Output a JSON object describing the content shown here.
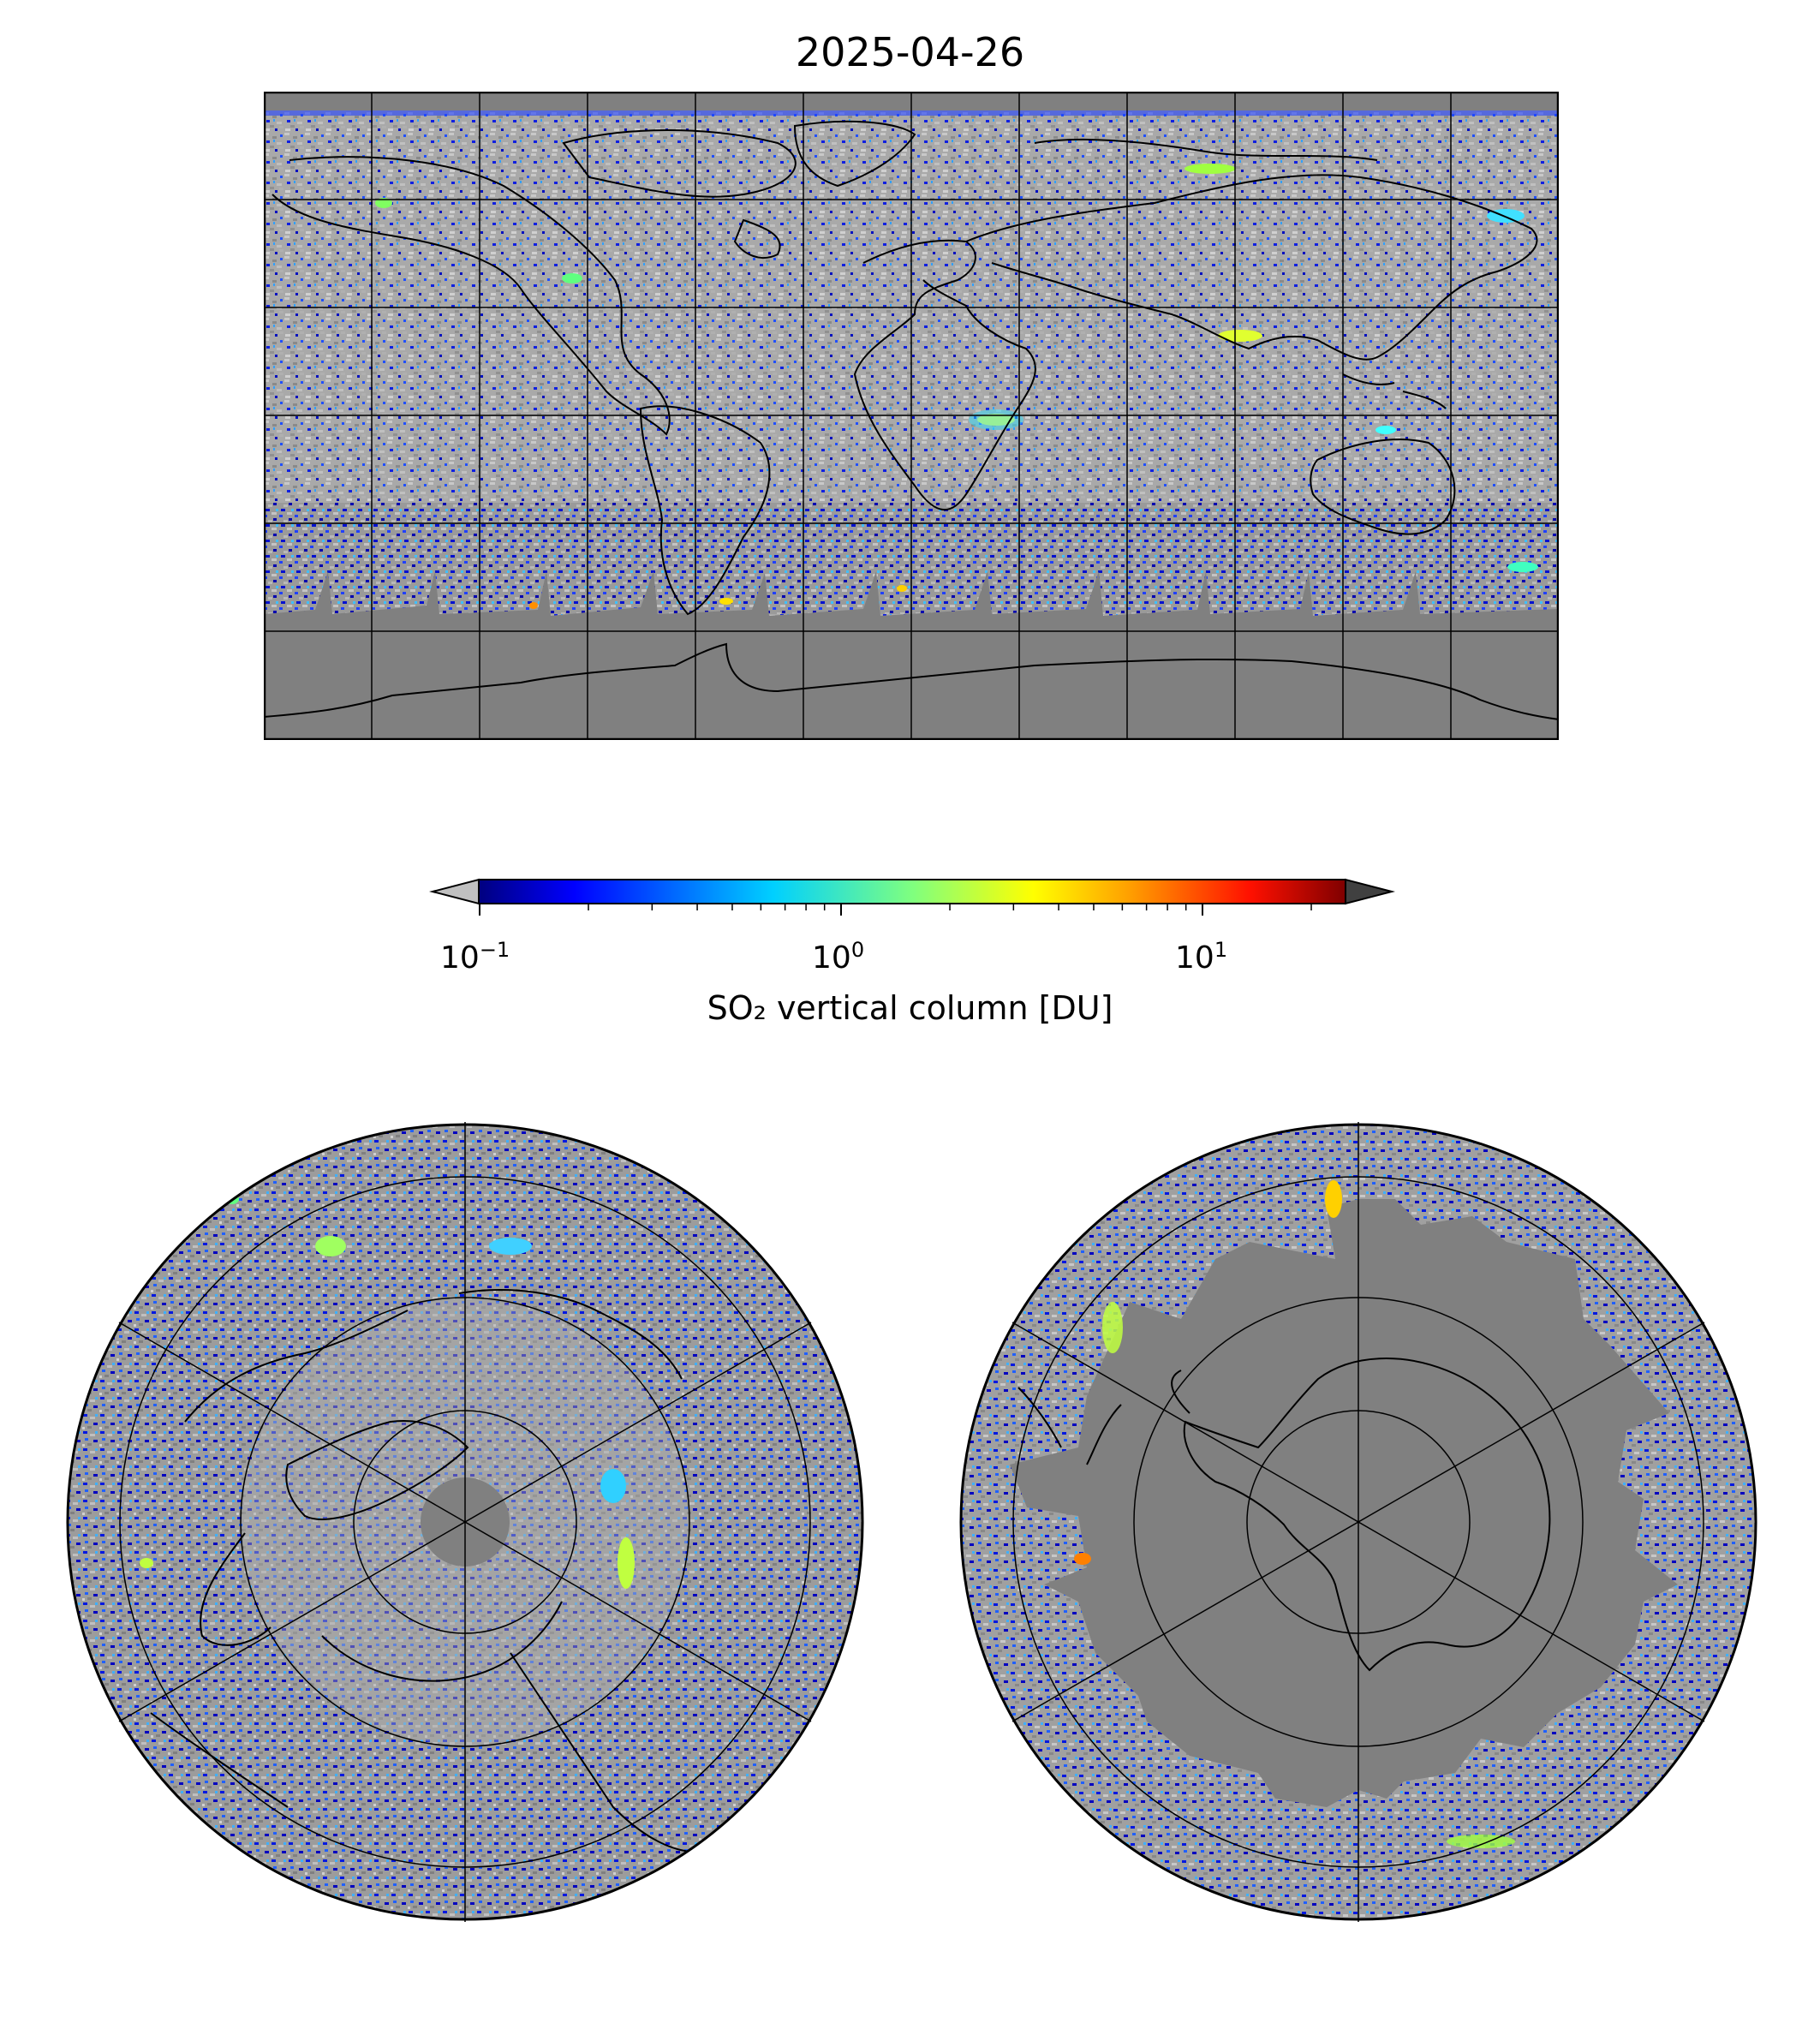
{
  "title": "2025-04-26",
  "colorbar": {
    "label": "SO₂ vertical column [DU]",
    "scale": "log",
    "range": [
      0.1,
      25
    ],
    "extend": "both",
    "under_color": "#c0c0c0",
    "over_color": "#404040",
    "colormap": "jet",
    "ticks": [
      {
        "base": "10",
        "exp": "−1",
        "value": 0.1
      },
      {
        "base": "10",
        "exp": "0",
        "value": 1
      },
      {
        "base": "10",
        "exp": "1",
        "value": 10
      }
    ]
  },
  "panels": {
    "global": {
      "projection": "equirectangular",
      "gridlines": true,
      "no_data_color": "#808080"
    },
    "north": {
      "projection": "north-polar-stereographic",
      "gridlines": true
    },
    "south": {
      "projection": "south-polar-stereographic",
      "gridlines": true
    }
  },
  "colors": {
    "background": "#808080",
    "low_values": "#b8b8b8",
    "frame": "#000000"
  }
}
